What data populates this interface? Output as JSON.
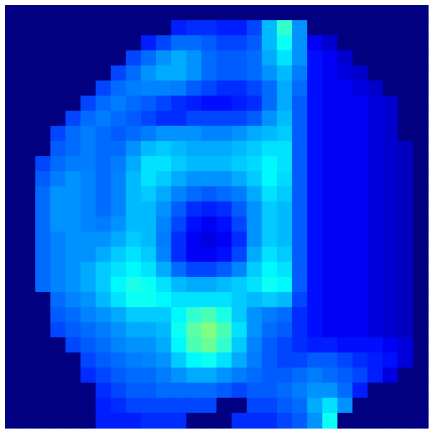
{
  "chart_data": {
    "type": "heatmap",
    "colormap": "jet",
    "zlim": [
      0,
      130
    ],
    "values": [
      [
        0,
        0,
        0,
        0,
        0,
        0,
        0,
        0,
        0,
        0,
        0,
        0,
        0,
        0,
        0,
        0,
        0,
        0,
        0,
        0,
        0,
        0,
        0,
        0,
        0,
        0,
        0,
        0
      ],
      [
        0,
        0,
        0,
        0,
        0,
        0,
        0,
        0,
        0,
        0,
        0,
        20,
        22,
        22,
        20,
        20,
        25,
        40,
        55,
        35,
        0,
        0,
        0,
        0,
        0,
        0,
        0,
        0
      ],
      [
        0,
        0,
        0,
        0,
        0,
        0,
        0,
        0,
        0,
        20,
        25,
        30,
        30,
        28,
        25,
        25,
        28,
        40,
        50,
        35,
        15,
        10,
        0,
        0,
        0,
        0,
        0,
        0
      ],
      [
        0,
        0,
        0,
        0,
        0,
        0,
        0,
        0,
        25,
        30,
        35,
        38,
        35,
        30,
        28,
        28,
        30,
        38,
        45,
        35,
        18,
        15,
        10,
        0,
        0,
        0,
        0,
        0
      ],
      [
        0,
        0,
        0,
        0,
        0,
        0,
        0,
        25,
        30,
        35,
        38,
        38,
        35,
        30,
        28,
        28,
        30,
        35,
        40,
        32,
        18,
        15,
        12,
        10,
        0,
        0,
        0,
        0
      ],
      [
        0,
        0,
        0,
        0,
        0,
        0,
        25,
        30,
        32,
        33,
        33,
        32,
        28,
        25,
        22,
        22,
        25,
        30,
        38,
        30,
        18,
        15,
        15,
        12,
        10,
        0,
        0,
        0
      ],
      [
        0,
        0,
        0,
        0,
        0,
        25,
        30,
        32,
        30,
        28,
        25,
        22,
        20,
        18,
        18,
        20,
        22,
        30,
        38,
        28,
        18,
        15,
        15,
        15,
        12,
        10,
        0,
        0
      ],
      [
        0,
        0,
        0,
        0,
        25,
        30,
        32,
        30,
        28,
        25,
        22,
        22,
        25,
        25,
        25,
        25,
        28,
        35,
        40,
        28,
        18,
        15,
        15,
        15,
        12,
        10,
        0,
        0
      ],
      [
        0,
        0,
        0,
        25,
        30,
        32,
        30,
        28,
        30,
        32,
        35,
        35,
        35,
        33,
        33,
        35,
        38,
        40,
        42,
        28,
        18,
        15,
        15,
        15,
        12,
        10,
        0,
        0
      ],
      [
        0,
        0,
        0,
        28,
        30,
        32,
        30,
        30,
        35,
        40,
        42,
        40,
        38,
        38,
        38,
        40,
        42,
        45,
        45,
        28,
        18,
        15,
        15,
        15,
        12,
        10,
        8,
        0
      ],
      [
        0,
        0,
        25,
        30,
        32,
        32,
        30,
        32,
        38,
        45,
        45,
        42,
        40,
        40,
        40,
        42,
        44,
        48,
        45,
        28,
        18,
        15,
        15,
        15,
        12,
        10,
        8,
        0
      ],
      [
        0,
        0,
        28,
        32,
        35,
        33,
        30,
        33,
        40,
        45,
        42,
        38,
        35,
        35,
        35,
        38,
        42,
        48,
        44,
        28,
        18,
        15,
        15,
        15,
        12,
        10,
        8,
        0
      ],
      [
        0,
        0,
        30,
        35,
        35,
        33,
        30,
        33,
        40,
        42,
        38,
        33,
        30,
        28,
        30,
        32,
        38,
        45,
        42,
        28,
        18,
        15,
        15,
        15,
        12,
        10,
        8,
        0
      ],
      [
        0,
        0,
        30,
        35,
        35,
        33,
        30,
        33,
        40,
        40,
        35,
        28,
        22,
        20,
        22,
        28,
        35,
        42,
        40,
        28,
        18,
        15,
        15,
        15,
        12,
        10,
        8,
        0
      ],
      [
        0,
        0,
        30,
        35,
        35,
        33,
        32,
        35,
        40,
        40,
        33,
        25,
        18,
        15,
        18,
        25,
        35,
        42,
        40,
        28,
        18,
        15,
        15,
        15,
        12,
        10,
        8,
        0
      ],
      [
        0,
        0,
        30,
        33,
        35,
        35,
        35,
        38,
        42,
        40,
        32,
        22,
        15,
        12,
        15,
        22,
        35,
        42,
        40,
        28,
        18,
        15,
        15,
        15,
        12,
        10,
        8,
        0
      ],
      [
        0,
        0,
        30,
        33,
        35,
        35,
        38,
        42,
        45,
        42,
        33,
        22,
        15,
        15,
        18,
        25,
        38,
        45,
        42,
        28,
        18,
        15,
        15,
        15,
        12,
        10,
        8,
        0
      ],
      [
        0,
        0,
        30,
        33,
        35,
        38,
        42,
        45,
        48,
        45,
        38,
        30,
        25,
        25,
        28,
        33,
        42,
        48,
        45,
        28,
        18,
        15,
        15,
        15,
        12,
        10,
        8,
        0
      ],
      [
        0,
        0,
        30,
        33,
        35,
        38,
        42,
        48,
        52,
        50,
        45,
        40,
        38,
        38,
        40,
        42,
        45,
        50,
        48,
        28,
        18,
        15,
        15,
        15,
        12,
        10,
        8,
        0
      ],
      [
        0,
        0,
        0,
        30,
        33,
        35,
        40,
        45,
        50,
        50,
        48,
        45,
        45,
        45,
        45,
        42,
        40,
        42,
        40,
        25,
        18,
        15,
        15,
        15,
        12,
        10,
        8,
        0
      ],
      [
        0,
        0,
        0,
        28,
        30,
        33,
        35,
        38,
        42,
        42,
        42,
        48,
        55,
        58,
        52,
        42,
        35,
        32,
        30,
        22,
        18,
        15,
        15,
        15,
        12,
        10,
        8,
        0
      ],
      [
        0,
        0,
        0,
        25,
        28,
        30,
        32,
        35,
        38,
        38,
        40,
        50,
        60,
        65,
        58,
        45,
        35,
        30,
        28,
        22,
        18,
        15,
        15,
        15,
        12,
        10,
        8,
        0
      ],
      [
        0,
        0,
        0,
        0,
        25,
        28,
        30,
        33,
        35,
        35,
        38,
        48,
        58,
        62,
        55,
        42,
        33,
        28,
        25,
        22,
        20,
        20,
        18,
        18,
        18,
        15,
        12,
        0
      ],
      [
        0,
        0,
        0,
        0,
        0,
        25,
        28,
        30,
        32,
        33,
        35,
        42,
        48,
        50,
        45,
        38,
        32,
        28,
        25,
        25,
        28,
        28,
        25,
        22,
        20,
        18,
        12,
        0
      ],
      [
        0,
        0,
        0,
        0,
        0,
        22,
        25,
        28,
        30,
        30,
        32,
        35,
        38,
        38,
        35,
        32,
        30,
        28,
        28,
        30,
        32,
        30,
        28,
        25,
        20,
        12,
        0,
        0
      ],
      [
        0,
        0,
        0,
        0,
        0,
        0,
        22,
        25,
        28,
        28,
        30,
        30,
        30,
        30,
        28,
        25,
        28,
        28,
        30,
        32,
        35,
        35,
        30,
        20,
        0,
        0,
        0,
        0
      ],
      [
        0,
        0,
        0,
        0,
        0,
        0,
        20,
        22,
        25,
        25,
        25,
        25,
        25,
        25,
        0,
        0,
        25,
        25,
        28,
        30,
        38,
        45,
        35,
        0,
        0,
        0,
        0,
        0
      ],
      [
        0,
        0,
        0,
        0,
        0,
        0,
        20,
        20,
        20,
        22,
        22,
        22,
        0,
        0,
        0,
        22,
        22,
        22,
        25,
        28,
        35,
        50,
        0,
        0,
        0,
        0,
        0,
        0
      ]
    ]
  }
}
